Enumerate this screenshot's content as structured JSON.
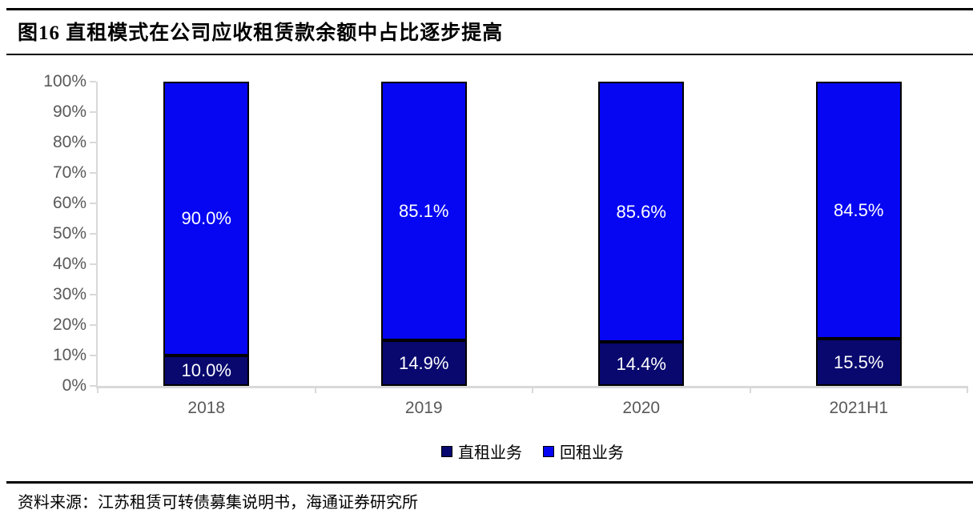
{
  "figure": {
    "title": "图16 直租模式在公司应收租赁款余额中占比逐步提高",
    "source": "资料来源：江苏租赁可转债募集说明书，海通证券研究所"
  },
  "chart_data": {
    "type": "bar",
    "stacked": true,
    "percent_stacked": true,
    "title": "直租模式在公司应收租赁款余额中占比逐步提高",
    "categories": [
      "2018",
      "2019",
      "2020",
      "2021H1"
    ],
    "series": [
      {
        "name": "直租业务",
        "color": "#08086e",
        "values": [
          10.0,
          14.9,
          14.4,
          15.5
        ],
        "labels": [
          "10.0%",
          "14.9%",
          "14.4%",
          "15.5%"
        ]
      },
      {
        "name": "回租业务",
        "color": "#0606f2",
        "values": [
          90.0,
          85.1,
          85.6,
          84.5
        ],
        "labels": [
          "90.0%",
          "85.1%",
          "85.6%",
          "84.5%"
        ]
      }
    ],
    "xlabel": "",
    "ylabel": "",
    "ylim": [
      0,
      100
    ],
    "ytick_step": 10,
    "yticks": [
      "0%",
      "10%",
      "20%",
      "30%",
      "40%",
      "50%",
      "60%",
      "70%",
      "80%",
      "90%",
      "100%"
    ],
    "grid": false,
    "legend_position": "bottom",
    "data_label_color": "#ffffff",
    "axis_color": "#d9d9d9",
    "tick_label_color": "#595959"
  }
}
